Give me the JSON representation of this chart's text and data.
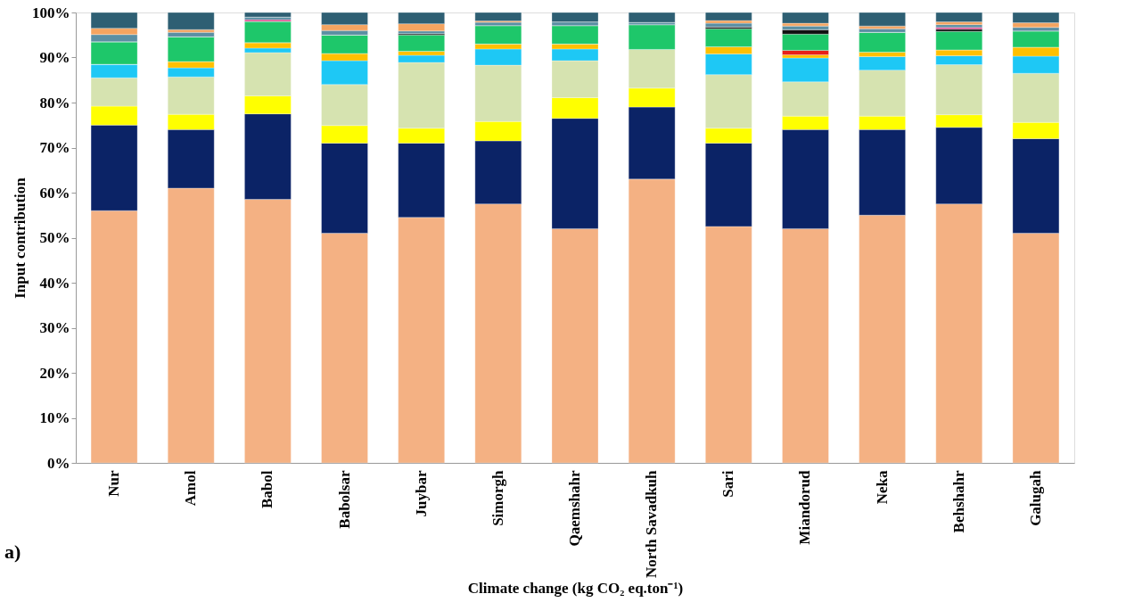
{
  "chart_data": {
    "type": "bar",
    "stacked": true,
    "ylabel": "Input contribution",
    "xlabel": "Climate change (kg CO₂ eq.ton⁻¹)",
    "annotations": [
      "a)"
    ],
    "categories": [
      "Nur",
      "Amol",
      "Babol",
      "Babolsar",
      "Juybar",
      "Simorgh",
      "Qaemshahr",
      "North Savadkuh",
      "Sari",
      "Miandorud",
      "Neka",
      "Behshahr",
      "Galugah"
    ],
    "ylim": [
      0,
      100
    ],
    "yticks": [
      {
        "value": 0,
        "label": "0%"
      },
      {
        "value": 10,
        "label": "10%"
      },
      {
        "value": 20,
        "label": "20%"
      },
      {
        "value": 30,
        "label": "30%"
      },
      {
        "value": 40,
        "label": "40%"
      },
      {
        "value": 50,
        "label": "50%"
      },
      {
        "value": 60,
        "label": "60%"
      },
      {
        "value": 70,
        "label": "70%"
      },
      {
        "value": 80,
        "label": "80%"
      },
      {
        "value": 90,
        "label": "90%"
      },
      {
        "value": 100,
        "label": "100%"
      }
    ],
    "grid": false,
    "legend": false,
    "series": [
      {
        "color": "#f4b183",
        "values": [
          56,
          61,
          58.5,
          51,
          54.5,
          57.5,
          52,
          63,
          52.5,
          52,
          55,
          57.5,
          51
        ]
      },
      {
        "color": "#0b2366",
        "values": [
          19,
          13,
          19,
          20,
          16.5,
          14,
          24.5,
          16,
          18.5,
          22,
          19,
          17,
          21
        ]
      },
      {
        "color": "#ffff00",
        "values": [
          4.2,
          3.4,
          4,
          3.9,
          3.3,
          4.3,
          4.6,
          4.2,
          3.3,
          3,
          3,
          2.8,
          3.6
        ]
      },
      {
        "color": "#d6e3b0",
        "values": [
          6.3,
          8.3,
          9.6,
          9.1,
          14.6,
          12.5,
          8.2,
          8.6,
          11.9,
          7.6,
          10.2,
          11.1,
          10.9
        ]
      },
      {
        "color": "#1ec8f5",
        "values": [
          3,
          2,
          1,
          5.3,
          1.6,
          3.6,
          2.6,
          0,
          4.6,
          5.3,
          3,
          2,
          3.8
        ]
      },
      {
        "color": "#ffc000",
        "values": [
          0,
          1.4,
          1.2,
          1.6,
          0.9,
          1.1,
          1.1,
          0,
          1.6,
          0.7,
          1,
          1.3,
          2
        ]
      },
      {
        "color": "#e8201a",
        "values": [
          0,
          0,
          0,
          0,
          0,
          0,
          0,
          0,
          0,
          1,
          0,
          0,
          0
        ]
      },
      {
        "color": "#1ec76a",
        "values": [
          5,
          5.5,
          4.7,
          4.1,
          3.6,
          4.1,
          4.1,
          5.5,
          4,
          3.6,
          4.4,
          4.1,
          3.6
        ]
      },
      {
        "color": "#111111",
        "values": [
          0,
          0,
          0,
          0,
          0.3,
          0,
          0,
          0,
          0.4,
          1,
          0,
          0.5,
          0
        ]
      },
      {
        "color": "#d9468c",
        "values": [
          0,
          0,
          0.4,
          0,
          0,
          0,
          0,
          0,
          0,
          0,
          0,
          0.4,
          0
        ]
      },
      {
        "color": "#5b8fa3",
        "values": [
          1.6,
          1,
          0.6,
          1,
          0.6,
          0.7,
          0.8,
          0.5,
          0.8,
          0.8,
          0.8,
          0.6,
          0.8
        ]
      },
      {
        "color": "#f4a460",
        "values": [
          1.4,
          0.6,
          0,
          1.3,
          1.6,
          0.3,
          0,
          0,
          0.6,
          0.6,
          0.6,
          0.6,
          1
        ]
      },
      {
        "color": "#2e5f73",
        "values": [
          3.5,
          3.8,
          1,
          2.7,
          2.5,
          1.9,
          2.1,
          2.2,
          1.8,
          2.4,
          3,
          2.1,
          2.3
        ]
      }
    ]
  }
}
